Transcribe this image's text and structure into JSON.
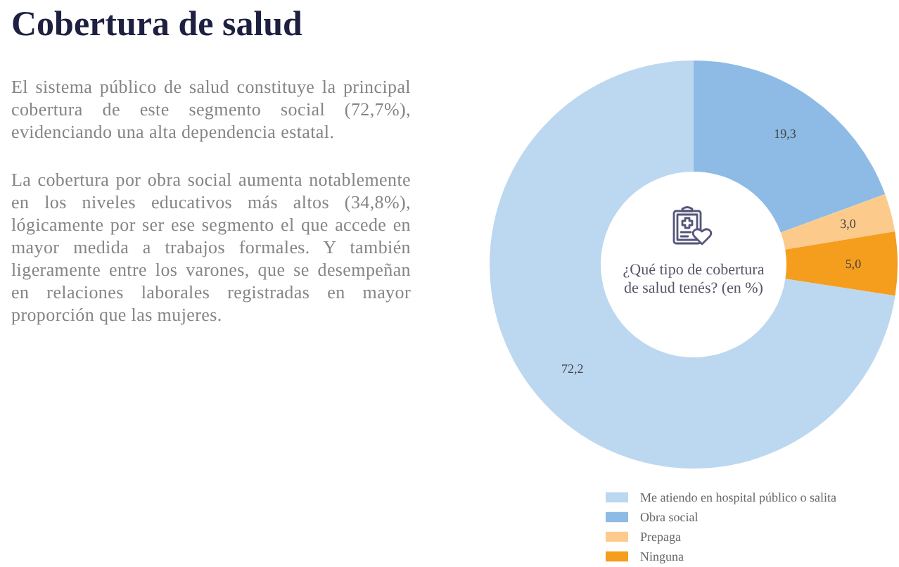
{
  "chart_data": {
    "type": "donut",
    "title": "Cobertura de salud",
    "subtitle": "¿Qué tipo de cobertura de salud tenés? (en %)",
    "categories": [
      "Me atiendo en hospital público o salita",
      "Obra social",
      "Prepaga",
      "Ninguna"
    ],
    "values": [
      72.2,
      19.3,
      3.0,
      5.0
    ],
    "colors": [
      "#bcd7f0",
      "#8dbbe5",
      "#fccb8c",
      "#f59d1c"
    ],
    "value_labels": [
      "72,2",
      "19,3",
      "3,0",
      "5,0"
    ],
    "legend": "bottom",
    "annotations": [
      "El sistema público de salud constituye la principal cobertura de este segmento social (72,7%), evidenciando una alta dependencia estatal.",
      "La cobertura por obra social aumenta notablemente en los niveles educativos más altos (34,8%), lógicamente por ser ese segmento el que accede en mayor medida a trabajos formales. Y también ligeramente entre los varones, que se desempeñan en relaciones laborales registradas en mayor proporción que las mujeres."
    ]
  }
}
